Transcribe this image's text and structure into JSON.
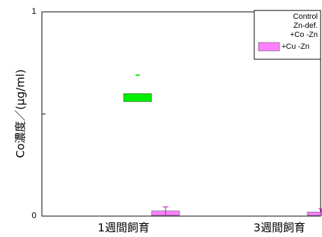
{
  "chart_data": {
    "type": "bar",
    "ylabel": "Co濃度／(μg/ml)",
    "ylim": [
      0,
      1
    ],
    "yticks": [
      {
        "value": 0,
        "label": "0"
      },
      {
        "value": 0.5,
        "label": ""
      },
      {
        "value": 1,
        "label": "1"
      }
    ],
    "categories": [
      "1週間飼育",
      "3週間飼育"
    ],
    "legend_position": "top-right",
    "series": [
      {
        "name": "Control",
        "color": "#ffffff",
        "values": [
          null,
          null
        ],
        "errors": [
          null,
          null
        ],
        "shown_in_legend_swatch": false
      },
      {
        "name": "Zn-def.",
        "color": "#ffffff",
        "values": [
          null,
          null
        ],
        "errors": [
          null,
          null
        ],
        "shown_in_legend_swatch": false
      },
      {
        "name": "+Co -Zn",
        "color": "#00ee00",
        "values": [
          0.58,
          null
        ],
        "errors": [
          0.11,
          null
        ],
        "shown_in_legend_swatch": false
      },
      {
        "name": "+Cu -Zn",
        "color": "#ff80ff",
        "values": [
          0.025,
          0.02
        ],
        "errors": [
          0.02,
          0.015
        ],
        "shown_in_legend_swatch": true
      }
    ]
  }
}
